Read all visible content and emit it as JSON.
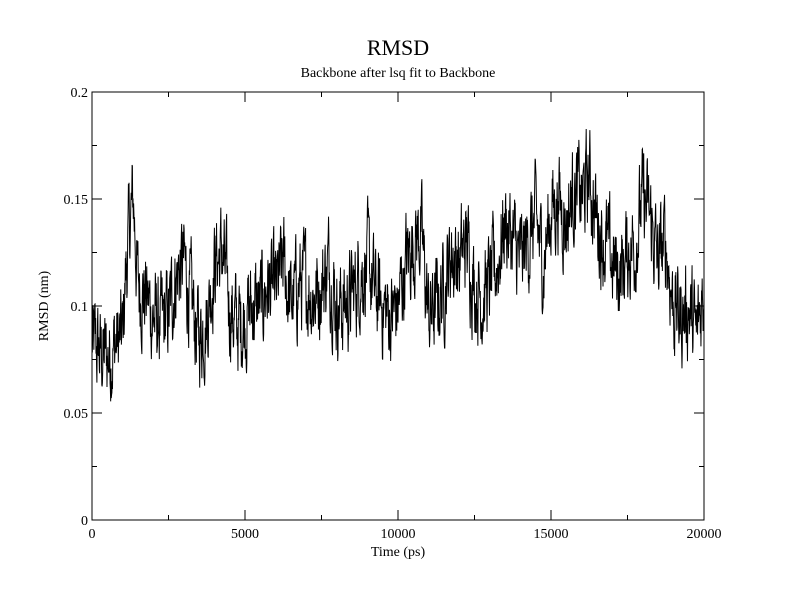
{
  "chart_data": {
    "type": "line",
    "title": "RMSD",
    "subtitle": "Backbone after lsq fit to Backbone",
    "xlabel": "Time (ps)",
    "ylabel": "RMSD (nm)",
    "xlim": [
      0,
      20000
    ],
    "ylim": [
      0,
      0.2
    ],
    "xticks": [
      0,
      5000,
      10000,
      15000,
      20000
    ],
    "xtick_labels": [
      "0",
      "5000",
      "10000",
      "15000",
      "20000"
    ],
    "yticks": [
      0,
      0.05,
      0.1,
      0.15,
      0.2
    ],
    "ytick_labels": [
      "0",
      "0.05",
      "0.1",
      "0.15",
      "0.2"
    ],
    "grid": false,
    "legend": "none",
    "line_color": "#000000",
    "series": [
      {
        "x": [
          0,
          250,
          500,
          750,
          1000,
          1100,
          1250,
          1350,
          1500,
          1750,
          2000,
          2250,
          2500,
          2750,
          3000,
          3250,
          3500,
          3750,
          4000,
          4250,
          4500,
          4750,
          5000,
          5250,
          5500,
          5750,
          6000,
          6250,
          6500,
          6750,
          7000,
          7250,
          7500,
          7750,
          8000,
          8250,
          8500,
          8750,
          9000,
          9250,
          9500,
          9750,
          10000,
          10250,
          10500,
          10750,
          11000,
          11250,
          11500,
          11750,
          12000,
          12250,
          12500,
          12750,
          13000,
          13250,
          13500,
          13750,
          14000,
          14250,
          14500,
          14750,
          15000,
          15250,
          15500,
          15750,
          16000,
          16250,
          16500,
          16750,
          17000,
          17250,
          17500,
          17750,
          18000,
          18250,
          18500,
          18750,
          19000,
          19250,
          19500,
          19750,
          20000
        ],
        "y": [
          0.082,
          0.078,
          0.076,
          0.082,
          0.085,
          0.115,
          0.14,
          0.15,
          0.11,
          0.105,
          0.095,
          0.09,
          0.095,
          0.115,
          0.12,
          0.1,
          0.085,
          0.095,
          0.12,
          0.125,
          0.1,
          0.09,
          0.095,
          0.1,
          0.1,
          0.11,
          0.105,
          0.12,
          0.1,
          0.11,
          0.11,
          0.105,
          0.11,
          0.12,
          0.1,
          0.1,
          0.105,
          0.115,
          0.12,
          0.105,
          0.1,
          0.095,
          0.1,
          0.12,
          0.13,
          0.135,
          0.095,
          0.1,
          0.11,
          0.125,
          0.12,
          0.13,
          0.11,
          0.105,
          0.11,
          0.12,
          0.14,
          0.13,
          0.12,
          0.13,
          0.14,
          0.12,
          0.145,
          0.15,
          0.14,
          0.155,
          0.15,
          0.16,
          0.14,
          0.13,
          0.12,
          0.115,
          0.125,
          0.13,
          0.15,
          0.14,
          0.12,
          0.13,
          0.1,
          0.095,
          0.1,
          0.085,
          0.11
        ]
      }
    ]
  }
}
